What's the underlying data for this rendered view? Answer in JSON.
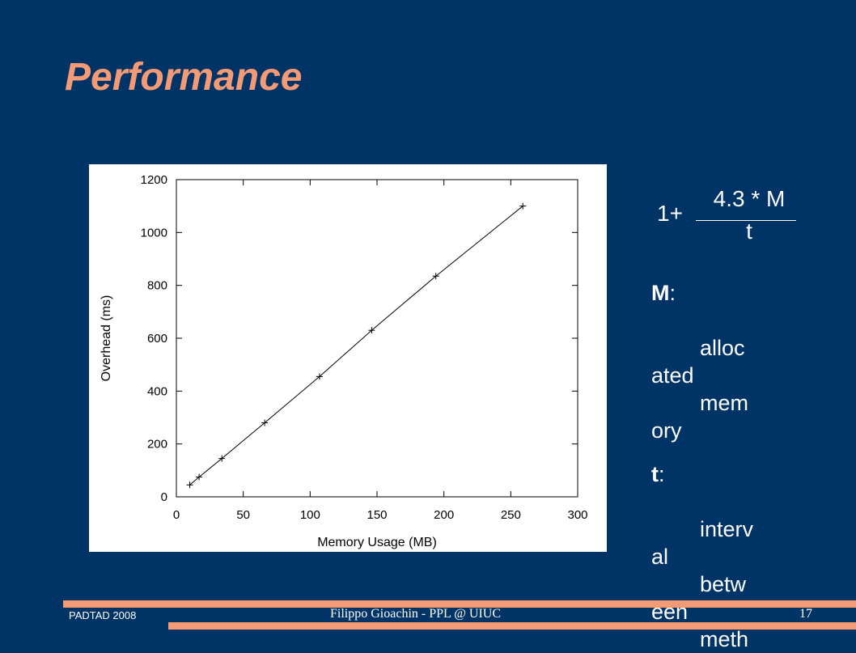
{
  "slide": {
    "title": "Performance"
  },
  "formula": {
    "prefix": "1+",
    "numerator": "4.3 * M",
    "denominator": "t"
  },
  "definitions": [
    {
      "term": "M",
      "colon": ":",
      "description": "\n        alloc\nated\n        mem\nory"
    },
    {
      "term": "t",
      "colon": ":",
      "description": "\n        interv\nal\n        betw\neen\n        meth"
    }
  ],
  "footer": {
    "left": "PADTAD 2008",
    "center": "Filippo Gioachin - PPL @ UIUC",
    "page_number": "17"
  },
  "colors": {
    "background": "#003366",
    "accent": "#f49a75",
    "text": "#ffffff"
  },
  "chart_data": {
    "type": "line",
    "xlabel": "Memory Usage (MB)",
    "ylabel": "Overhead (ms)",
    "xlim": [
      0,
      300
    ],
    "ylim": [
      0,
      1200
    ],
    "xticks": [
      0,
      50,
      100,
      150,
      200,
      250,
      300
    ],
    "yticks": [
      0,
      200,
      400,
      600,
      800,
      1000,
      1200
    ],
    "grid": false,
    "series": [
      {
        "x": [
          10,
          17,
          34,
          66,
          107,
          146,
          194,
          259
        ],
        "y": [
          45,
          75,
          145,
          280,
          455,
          630,
          835,
          1100
        ]
      }
    ]
  }
}
